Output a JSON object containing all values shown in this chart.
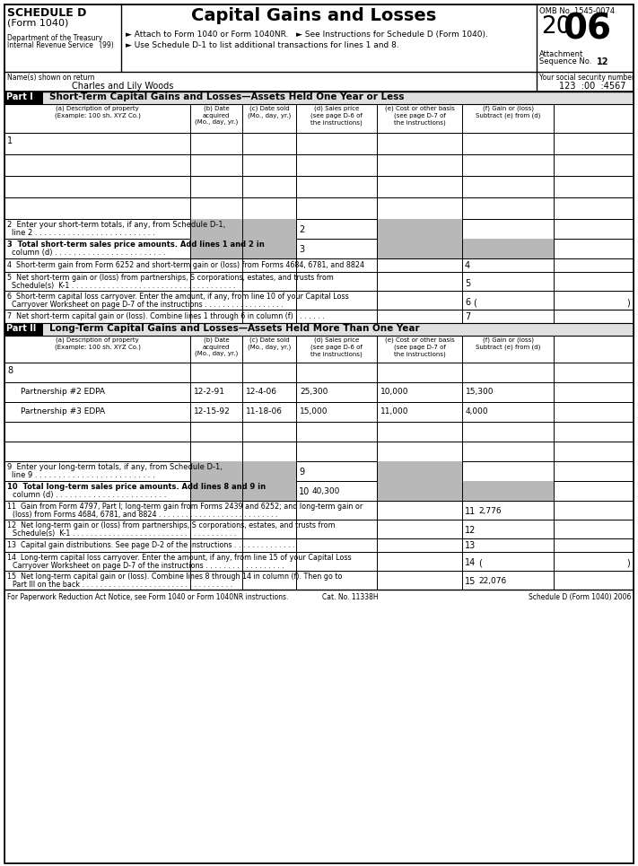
{
  "title": "Capital Gains and Losses",
  "form_name": "SCHEDULE D",
  "form_sub": "(Form 1040)",
  "dept": "Department of the Treasury",
  "irs": "Internal Revenue Service   (99)",
  "attach1": "► Attach to Form 1040 or Form 1040NR.   ► See Instructions for Schedule D (Form 1040).",
  "attach2": "► Use Schedule D-1 to list additional transactions for lines 1 and 8.",
  "omb": "OMB No. 1545-0074",
  "attach_seq": "Attachment\nSequence No. 12",
  "name_label": "Name(s) shown on return",
  "name_val": "Charles and Lily Woods",
  "ssn_label": "Your social security number",
  "ssn_val": "123  :00  :4567",
  "part1_label": "Part I",
  "part1_title": "Short-Term Capital Gains and Losses—Assets Held One Year or Less",
  "col_headers_a": "(a) Description of property\n(Example: 100 sh. XYZ Co.)",
  "col_headers_b": "(b) Date\nacquired\n(Mo., day, yr.)",
  "col_headers_c": "(c) Date sold\n(Mo., day, yr.)",
  "col_headers_d": "(d) Sales price\n(see page D-6 of\nthe instructions)",
  "col_headers_e": "(e) Cost or other basis\n(see page D-7 of\nthe instructions)",
  "col_headers_f": "(f) Gain or (loss)\nSubtract (e) from (d)",
  "line2_a": "Enter your short-term totals, if any, from Schedule D-1,",
  "line2_b": "line 2 . . . . . . . . . . . . . . . . . . . . . . . . . .",
  "line3_a": "Total short-term sales price amounts. Add lines 1 and 2 in",
  "line3_b": "column (d) . . . . . . . . . . . . . . . . . . . . . . . .",
  "line4_text": "Short-term gain from Form 6252 and short-term gain or (loss) from Forms 4684, 6781, and 8824",
  "line5_a": "Net short-term gain or (loss) from partnerships, S corporations, estates, and trusts from",
  "line5_b": "Schedule(s)  K-1 . . . . . . . . . . . . . . . . . . . . . . . . . . . . . . . . . . . . .",
  "line6_a": "Short-term capital loss carryover. Enter the amount, if any, from line 10 of your Capital Loss",
  "line6_b": "Carryover Worksheet on page D-7 of the instructions . . . . . . . . . . . . . . . . . .",
  "line7_text": "Net short-term capital gain or (loss). Combine lines 1 through 6 in column (f) . . . . . . .",
  "part2_label": "Part II",
  "part2_title": "Long-Term Capital Gains and Losses—Assets Held More Than One Year",
  "row8_1": [
    "Partnership #2 EDPA",
    "12-2-91",
    "12-4-06",
    "25,300",
    "10,000",
    "15,300"
  ],
  "row8_2": [
    "Partnership #3 EDPA",
    "12-15-92",
    "11-18-06",
    "15,000",
    "11,000",
    "4,000"
  ],
  "line9_a": "Enter your long-term totals, if any, from Schedule D-1,",
  "line9_b": "line 9 . . . . . . . . . . . . . . . . . . . . . . . . . .",
  "line10_a": "Total long-term sales price amounts. Add lines 8 and 9 in",
  "line10_b": "column (d) . . . . . . . . . . . . . . . . . . . . . . . .",
  "line10_val": "40,300",
  "line11_a": "Gain from Form 4797, Part I; long-term gain from Forms 2439 and 6252; and long-term gain or",
  "line11_b": "(loss) from Forms 4684, 6781, and 8824 . . . . . . . . . . . . . . . . . . . . . . . . . . .",
  "line11_val": "2,776",
  "line12_a": "Net long-term gain or (loss) from partnerships, S corporations, estates, and trusts from",
  "line12_b": "Schedule(s)  K-1 . . . . . . . . . . . . . . . . . . . . . . . . . . . . . . . . . . . . .",
  "line13_text": "Capital gain distributions. See page D-2 of the instructions . . . . . . . . . . . . . .",
  "line14_a": "Long-term capital loss carryover. Enter the amount, if any, from line 15 of your Capital Loss",
  "line14_b": "Carryover Worksheet on page D-7 of the instructions . . . . . . . . . . . . . . . . . .",
  "line15_a": "Net long-term capital gain or (loss). Combine lines 8 through 14 in column (f). Then go to",
  "line15_b": "Part III on the back . . . . . . . . . . . . . . . . . . . . . . . . . . . . . . . . . .",
  "line15_val": "22,076",
  "footer_left": "For Paperwork Reduction Act Notice, see Form 1040 or Form 1040NR instructions.",
  "footer_cat": "Cat. No. 11338H",
  "footer_right": "Schedule D (Form 1040) 2006",
  "gray": "#b8b8b8",
  "dgray": "#888888"
}
